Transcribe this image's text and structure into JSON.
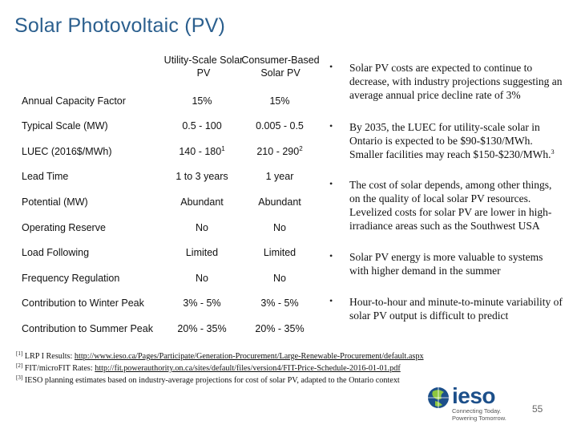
{
  "slide": {
    "title": "Solar Photovoltaic (PV)",
    "page_number": "55"
  },
  "table": {
    "headers": [
      "Utility-Scale Solar PV",
      "Consumer-Based Solar PV"
    ],
    "rows": [
      {
        "label": "Annual Capacity Factor",
        "utility": "15%",
        "consumer": "15%"
      },
      {
        "label": "Typical Scale (MW)",
        "utility": "0.5 - 100",
        "consumer": "0.005 - 0.5"
      },
      {
        "label": "LUEC (2016$/MWh)",
        "utility": "140 - 180",
        "utility_note": "1",
        "consumer": "210 - 290",
        "consumer_note": "2"
      },
      {
        "label": "Lead Time",
        "utility": "1 to 3 years",
        "consumer": "1 year"
      },
      {
        "label": "Potential (MW)",
        "utility": "Abundant",
        "consumer": "Abundant"
      },
      {
        "label": "Operating Reserve",
        "utility": "No",
        "consumer": "No"
      },
      {
        "label": "Load Following",
        "utility": "Limited",
        "consumer": "Limited"
      },
      {
        "label": "Frequency Regulation",
        "utility": "No",
        "consumer": "No"
      },
      {
        "label": "Contribution to Winter Peak",
        "utility": "3% - 5%",
        "consumer": "3% - 5%"
      },
      {
        "label": "Contribution to Summer Peak",
        "utility": "20% - 35%",
        "consumer": "20% - 35%"
      }
    ]
  },
  "bullets": [
    "Solar PV costs are expected to continue to decrease, with industry projections suggesting an average annual price decline rate of 3%",
    "By 2035, the LUEC for utility-scale solar in Ontario is expected to be $90-$130/MWh. Smaller facilities may reach $150-$230/MWh.",
    "The cost of solar depends, among other things, on the quality of local solar PV resources. Levelized costs for solar PV are lower in high-irradiance areas such as the Southwest USA",
    "Solar PV energy is more valuable to systems with higher demand in the summer",
    "Hour-to-hour and minute-to-minute variability of solar PV output is difficult to predict"
  ],
  "bullet2_note": "3",
  "footnotes": [
    {
      "mark": "[1]",
      "text": "LRP I Results: ",
      "link": "http://www.ieso.ca/Pages/Participate/Generation-Procurement/Large-Renewable-Procurement/default.aspx"
    },
    {
      "mark": "[2]",
      "text": "FIT/microFIT Rates: ",
      "link": "http://fit.powerauthority.on.ca/sites/default/files/version4/FIT-Price-Schedule-2016-01-01.pdf"
    },
    {
      "mark": "[3]",
      "text": "IESO planning estimates based on industry-average projections for cost of solar PV, adapted to the Ontario context",
      "link": ""
    }
  ],
  "logo": {
    "word": "ieso",
    "tagline_1": "Connecting Today.",
    "tagline_2": "Powering Tomorrow.",
    "icon": "globe-logo-icon"
  },
  "colors": {
    "title": "#2b5f8e",
    "logo_blue": "#1c4f8a",
    "logo_green": "#8dc63f"
  }
}
